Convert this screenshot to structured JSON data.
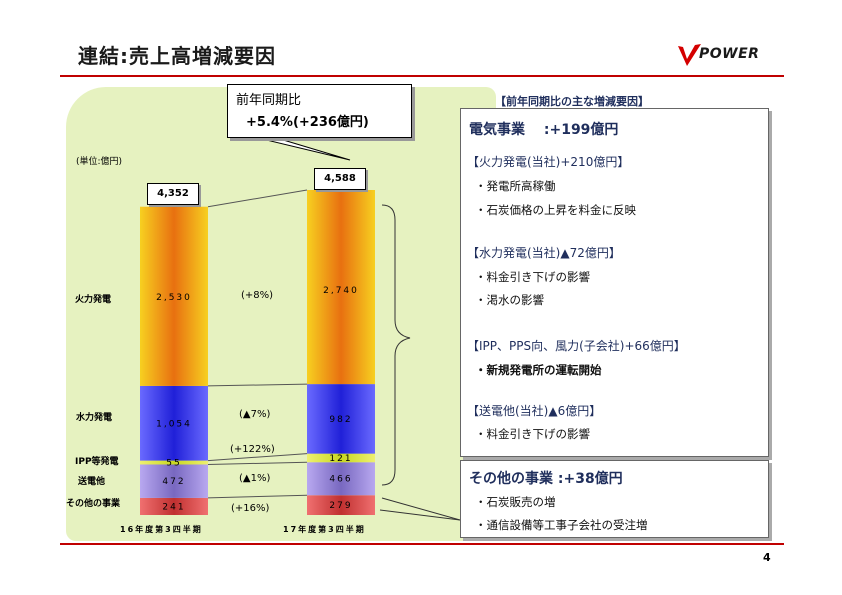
{
  "title": "連結:売上高増減要因",
  "logo_text": "POWER",
  "page_number": "4",
  "callout": {
    "line1": "前年同期比",
    "line2": "+5.4%(+236億円)"
  },
  "unit_label": "(単位:億円)",
  "colors": {
    "thermal": "#f0a020",
    "hydro": "#3c3cf0",
    "ipp": "#d8e840",
    "transmission": "#9a88d8",
    "other": "#d85050",
    "accent_red": "#c00000",
    "panel": "#e6f2c0"
  },
  "chart_data": {
    "type": "bar",
    "stacked": true,
    "categories": [
      "16年度第3四半期",
      "17年度第3四半期"
    ],
    "totals": [
      "4,352",
      "4,588"
    ],
    "series": [
      {
        "name": "その他の事業",
        "values": [
          241,
          279
        ],
        "labels": [
          "241",
          "279"
        ],
        "change": "(+16%)"
      },
      {
        "name": "送電他",
        "values": [
          472,
          466
        ],
        "labels": [
          "472",
          "466"
        ],
        "change": "(▲1%)"
      },
      {
        "name": "IPP等発電",
        "values": [
          55,
          121
        ],
        "labels": [
          "55",
          "121"
        ],
        "change": "(+122%)"
      },
      {
        "name": "水力発電",
        "values": [
          1054,
          982
        ],
        "labels": [
          "1,054",
          "982"
        ],
        "change": "(▲7%)"
      },
      {
        "name": "火力発電",
        "values": [
          2530,
          2740
        ],
        "labels": [
          "2,530",
          "2,740"
        ],
        "change": "(+8%)"
      }
    ]
  },
  "right_panel": {
    "header": "【前年同期比の主な増減要因】",
    "electric": {
      "title": "電気事業　 :+199億円",
      "sections": [
        {
          "head": "【火力発電(当社)+210億円】",
          "items": [
            "・発電所高稼働",
            "・石炭価格の上昇を料金に反映"
          ]
        },
        {
          "head": "【水力発電(当社)▲72億円】",
          "items": [
            "・料金引き下げの影響",
            "・渇水の影響"
          ]
        },
        {
          "head": "【IPP、PPS向、風力(子会社)+66億円】",
          "items": [
            "・新規発電所の運転開始"
          ]
        },
        {
          "head": "【送電他(当社)▲6億円】",
          "items": [
            "・料金引き下げの影響"
          ]
        }
      ]
    },
    "other": {
      "title": "その他の事業 :+38億円",
      "items": [
        "・石炭販売の増",
        "・通信設備等工事子会社の受注増"
      ]
    }
  }
}
